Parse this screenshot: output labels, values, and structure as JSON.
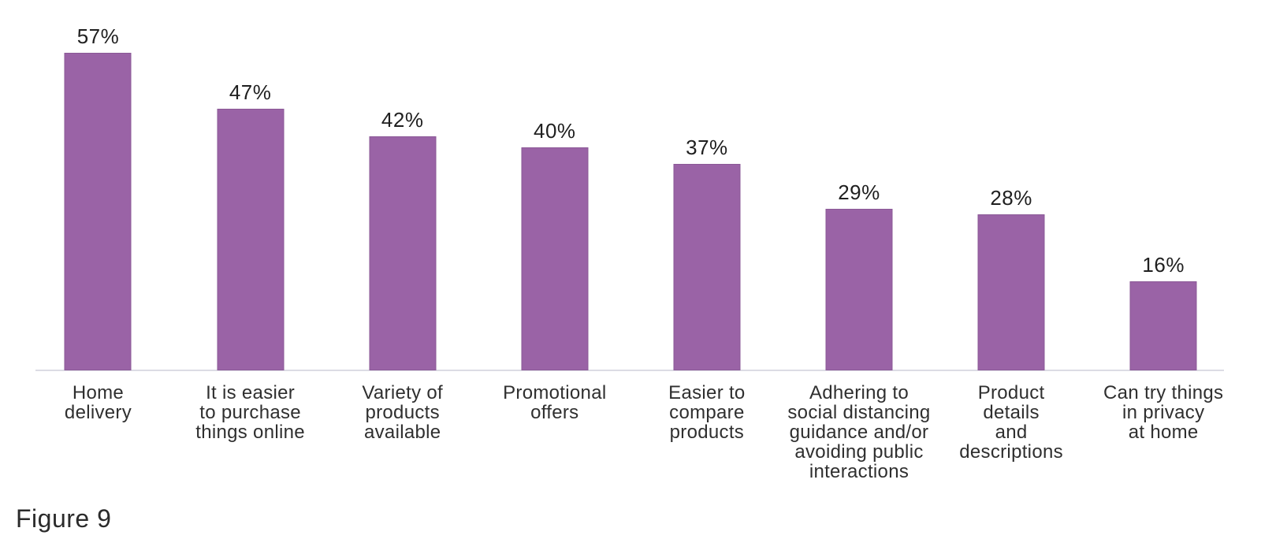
{
  "figure_label": "Figure 9",
  "chart_data": {
    "type": "bar",
    "title": "",
    "xlabel": "",
    "ylabel": "",
    "unit": "%",
    "ylim": [
      0,
      60
    ],
    "grid": false,
    "legend_position": "none",
    "bar_color": "#9a63a6",
    "axis_line_color": "#dcdce4",
    "categories": [
      "Home\ndelivery",
      "It is easier\nto purchase\nthings online",
      "Variety of\nproducts\navailable",
      "Promotional\noffers",
      "Easier to\ncompare\nproducts",
      "Adhering to\nsocial distancing\nguidance and/or\navoiding public\ninteractions",
      "Product\ndetails\nand\ndescriptions",
      "Can try things\nin privacy\nat home"
    ],
    "values": [
      57,
      47,
      42,
      40,
      37,
      29,
      28,
      16
    ],
    "value_labels": [
      "57%",
      "47%",
      "42%",
      "40%",
      "37%",
      "29%",
      "28%",
      "16%"
    ]
  }
}
